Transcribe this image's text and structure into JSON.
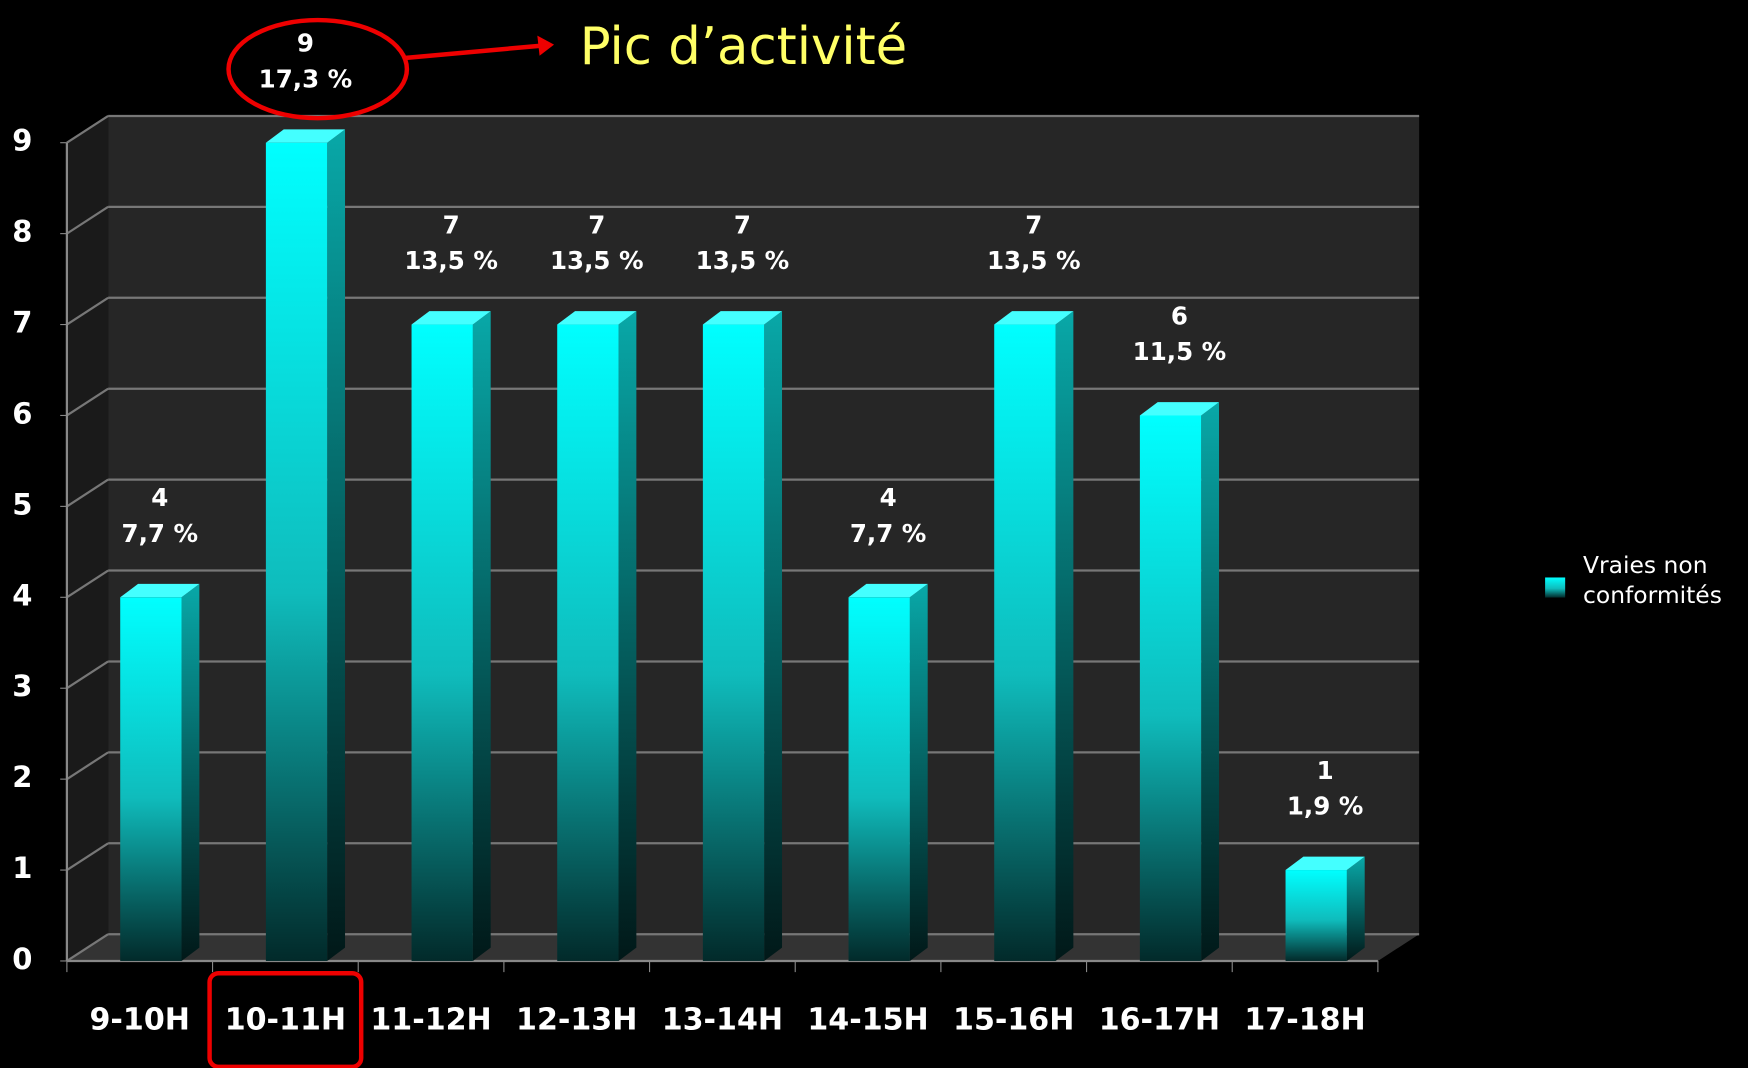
{
  "chart_data": {
    "type": "bar3d",
    "categories": [
      "9-10H",
      "10-11H",
      "11-12H",
      "12-13H",
      "13-14H",
      "14-15H",
      "15-16H",
      "16-17H",
      "17-18H"
    ],
    "series": [
      {
        "name": "Vraies non conformités",
        "color": "#19dede",
        "values": [
          4,
          9,
          7,
          7,
          7,
          4,
          7,
          6,
          1
        ]
      }
    ],
    "percentages": [
      7.7,
      17.3,
      13.5,
      13.5,
      13.5,
      7.7,
      13.5,
      11.5,
      1.9
    ],
    "percentage_labels": [
      "7,7 %",
      "17,3 %",
      "13,5 %",
      "13,5 %",
      "13,5 %",
      "7,7 %",
      "13,5 %",
      "11,5 %",
      "1,9 %"
    ],
    "ylim": [
      0,
      9
    ],
    "yticks": [
      0,
      1,
      2,
      3,
      4,
      5,
      6,
      7,
      8,
      9
    ],
    "grid": true,
    "legend": "right",
    "annotation": "Pic d’activité",
    "highlight_category": 1
  }
}
